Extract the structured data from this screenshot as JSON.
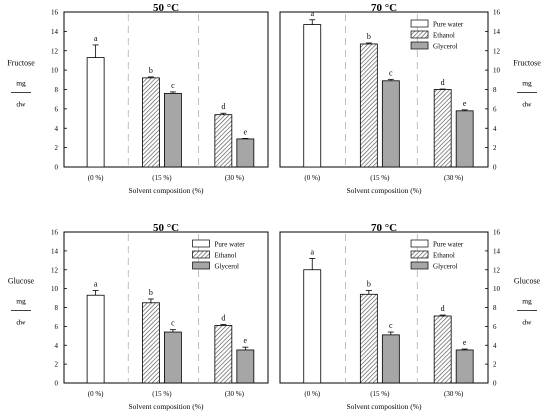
{
  "legend_items": [
    {
      "label": "Pure water",
      "pattern": "white"
    },
    {
      "label": "Ethanol",
      "pattern": "hatch"
    },
    {
      "label": "Glycerol",
      "pattern": "gray"
    }
  ],
  "colors": {
    "pure_water": "#ffffff",
    "ethanol_hatch": "#666666",
    "glycerol": "#a6a6a6",
    "axis": "#000000",
    "divider": "#b0b0b0"
  },
  "chart_data": [
    {
      "type": "bar",
      "title": "50 °C",
      "xlabel": "Solvent composition (%)",
      "ylabel": [
        "Fructose",
        "mg",
        "dw"
      ],
      "ylim": [
        0,
        16
      ],
      "yticks": [
        "0",
        "2",
        "4",
        "6",
        "8",
        "10",
        "12",
        "14",
        "16"
      ],
      "categories": [
        "(0 %)",
        "(15 %)",
        "(30 %)"
      ],
      "legend": false,
      "bars": [
        {
          "series": "Pure water",
          "group": 0,
          "value": 11.3,
          "error": 1.3,
          "letter": "a"
        },
        {
          "series": "Ethanol",
          "group": 1,
          "value": 9.2,
          "error": 0.1,
          "letter": "b"
        },
        {
          "series": "Glycerol",
          "group": 1,
          "value": 7.6,
          "error": 0.15,
          "letter": "c"
        },
        {
          "series": "Ethanol",
          "group": 2,
          "value": 5.4,
          "error": 0.15,
          "letter": "d"
        },
        {
          "series": "Glycerol",
          "group": 2,
          "value": 2.9,
          "error": 0.05,
          "letter": "e"
        }
      ]
    },
    {
      "type": "bar",
      "title": "70 °C",
      "xlabel": "Solvent composition (%)",
      "ylabel": [
        "Fructose",
        "mg",
        "dw"
      ],
      "ylim": [
        0,
        16
      ],
      "yticks": [
        "0",
        "2",
        "4",
        "6",
        "8",
        "10",
        "12",
        "14",
        "16"
      ],
      "categories": [
        "(0 %)",
        "(15 %)",
        "(30 %)"
      ],
      "legend": true,
      "bars": [
        {
          "series": "Pure water",
          "group": 0,
          "value": 14.7,
          "error": 0.5,
          "letter": "a"
        },
        {
          "series": "Ethanol",
          "group": 1,
          "value": 12.7,
          "error": 0.1,
          "letter": "b"
        },
        {
          "series": "Glycerol",
          "group": 1,
          "value": 8.9,
          "error": 0.15,
          "letter": "c"
        },
        {
          "series": "Ethanol",
          "group": 2,
          "value": 8.0,
          "error": 0.05,
          "letter": "d"
        },
        {
          "series": "Glycerol",
          "group": 2,
          "value": 5.8,
          "error": 0.1,
          "letter": "e"
        }
      ]
    },
    {
      "type": "bar",
      "title": "50 °C",
      "xlabel": "Solvent composition (%)",
      "ylabel": [
        "Glucose",
        "mg",
        "dw"
      ],
      "ylim": [
        0,
        16
      ],
      "yticks": [
        "0",
        "2",
        "4",
        "6",
        "8",
        "10",
        "12",
        "14",
        "16"
      ],
      "categories": [
        "(0 %)",
        "(15 %)",
        "(30 %)"
      ],
      "legend": true,
      "bars": [
        {
          "series": "Pure water",
          "group": 0,
          "value": 9.3,
          "error": 0.5,
          "letter": "a"
        },
        {
          "series": "Ethanol",
          "group": 1,
          "value": 8.5,
          "error": 0.4,
          "letter": "b"
        },
        {
          "series": "Glycerol",
          "group": 1,
          "value": 5.4,
          "error": 0.25,
          "letter": "c"
        },
        {
          "series": "Ethanol",
          "group": 2,
          "value": 6.1,
          "error": 0.1,
          "letter": "d"
        },
        {
          "series": "Glycerol",
          "group": 2,
          "value": 3.5,
          "error": 0.3,
          "letter": "e"
        }
      ]
    },
    {
      "type": "bar",
      "title": "70 °C",
      "xlabel": "Solvent composition (%)",
      "ylabel": [
        "Glucose",
        "mg",
        "dw"
      ],
      "ylim": [
        0,
        16
      ],
      "yticks": [
        "0",
        "2",
        "4",
        "6",
        "8",
        "10",
        "12",
        "14",
        "16"
      ],
      "categories": [
        "(0 %)",
        "(15 %)",
        "(30 %)"
      ],
      "legend": true,
      "bars": [
        {
          "series": "Pure water",
          "group": 0,
          "value": 12.0,
          "error": 1.2,
          "letter": "a"
        },
        {
          "series": "Ethanol",
          "group": 1,
          "value": 9.4,
          "error": 0.4,
          "letter": "b"
        },
        {
          "series": "Glycerol",
          "group": 1,
          "value": 5.1,
          "error": 0.3,
          "letter": "c"
        },
        {
          "series": "Ethanol",
          "group": 2,
          "value": 7.1,
          "error": 0.1,
          "letter": "d"
        },
        {
          "series": "Glycerol",
          "group": 2,
          "value": 3.5,
          "error": 0.1,
          "letter": "e"
        }
      ]
    }
  ]
}
